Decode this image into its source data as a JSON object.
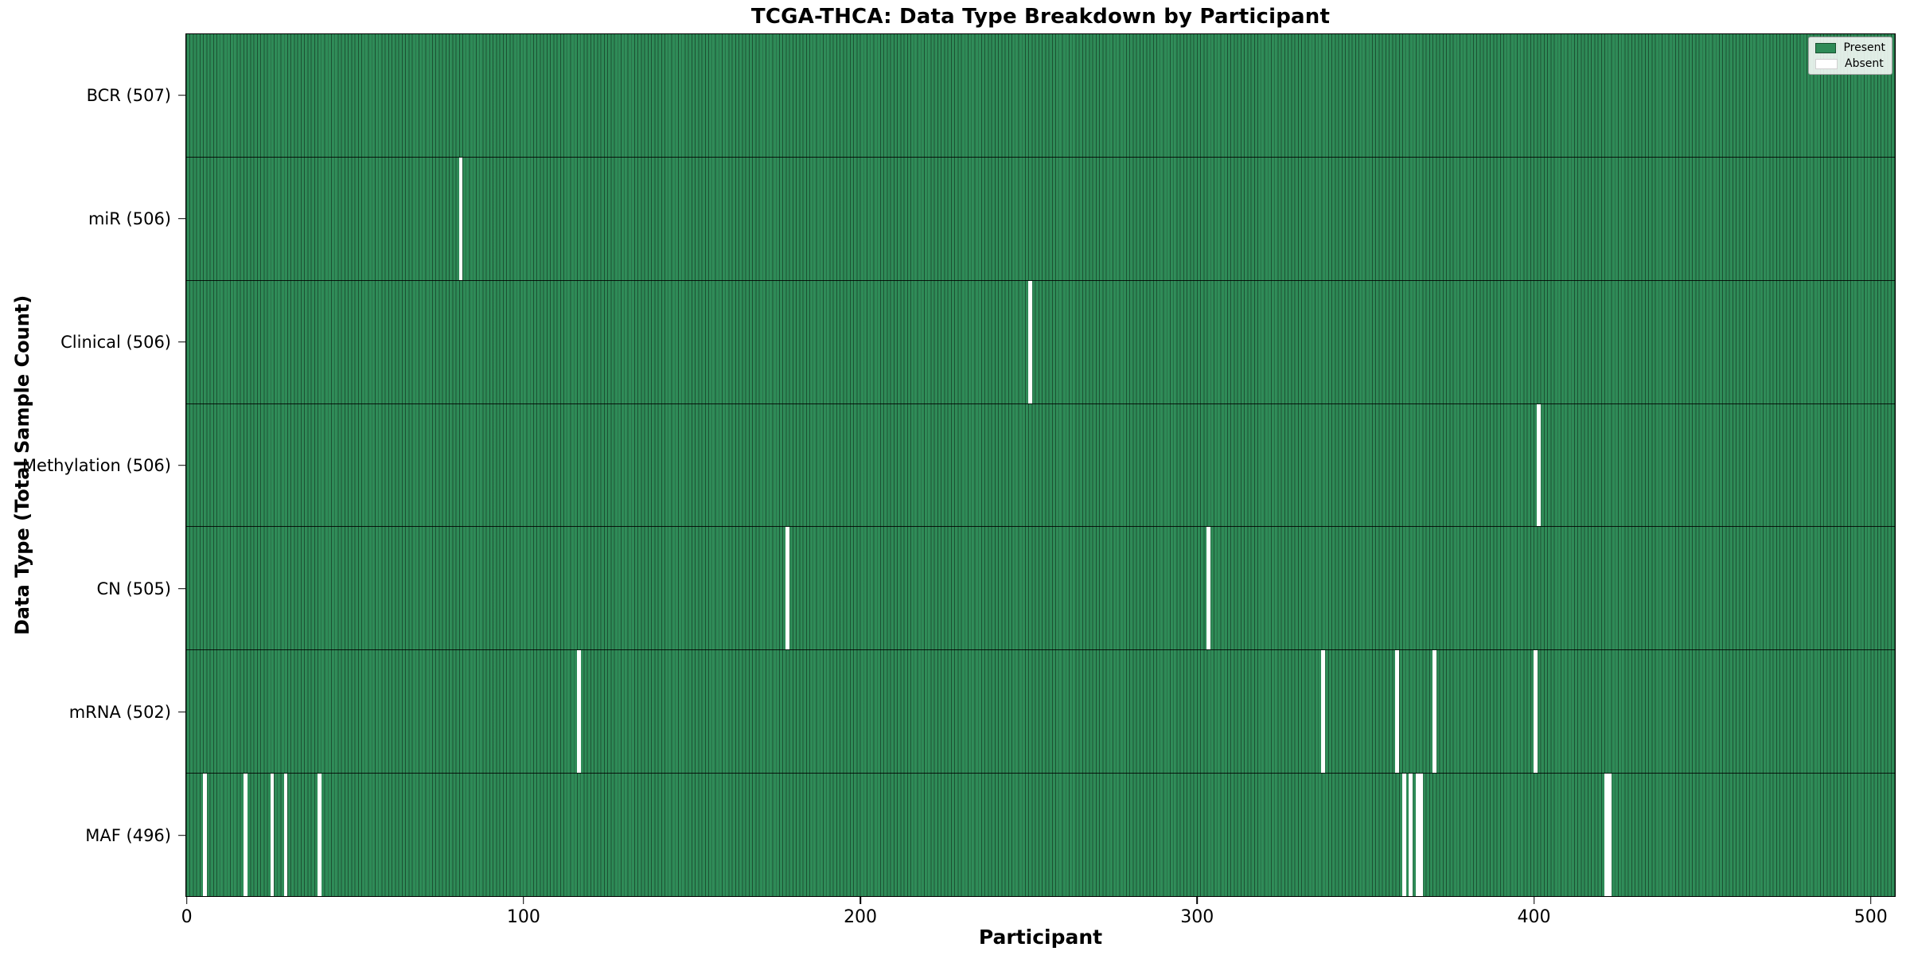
{
  "title": "TCGA-THCA: Data Type Breakdown by Participant",
  "xlabel": "Participant",
  "ylabel": "Data Type (Total Sample Count)",
  "legend": {
    "present_label": "Present",
    "absent_label": "Absent"
  },
  "colors": {
    "present": "#2e8b57",
    "absent": "#ffffff",
    "bar_edge": "rgba(0,0,0,0.42)",
    "axis": "#000000"
  },
  "chart_data": {
    "type": "heatmap",
    "title": "TCGA-THCA: Data Type Breakdown by Participant",
    "xlabel": "Participant",
    "ylabel": "Data Type (Total Sample Count)",
    "x_ticks": [
      0,
      100,
      200,
      300,
      400,
      500
    ],
    "xlim": [
      0,
      507
    ],
    "n_participants": 507,
    "grid": false,
    "legend_position": "upper right",
    "legend_entries": [
      "Present",
      "Absent"
    ],
    "rows": [
      {
        "label": "BCR (507)",
        "data_type": "BCR",
        "total": 507,
        "absent_participants": []
      },
      {
        "label": "miR (506)",
        "data_type": "miR",
        "total": 506,
        "absent_participants": [
          81
        ]
      },
      {
        "label": "Clinical (506)",
        "data_type": "Clinical",
        "total": 506,
        "absent_participants": [
          250
        ]
      },
      {
        "label": "Methylation (506)",
        "data_type": "Methylation",
        "total": 506,
        "absent_participants": [
          401
        ]
      },
      {
        "label": "CN (505)",
        "data_type": "CN",
        "total": 505,
        "absent_participants": [
          178,
          303
        ]
      },
      {
        "label": "mRNA (502)",
        "data_type": "mRNA",
        "total": 502,
        "absent_participants": [
          116,
          337,
          359,
          370,
          400
        ]
      },
      {
        "label": "MAF (496)",
        "data_type": "MAF",
        "total": 496,
        "absent_participants": [
          5,
          17,
          25,
          29,
          39,
          361,
          363,
          365,
          366,
          421,
          422
        ]
      }
    ]
  }
}
